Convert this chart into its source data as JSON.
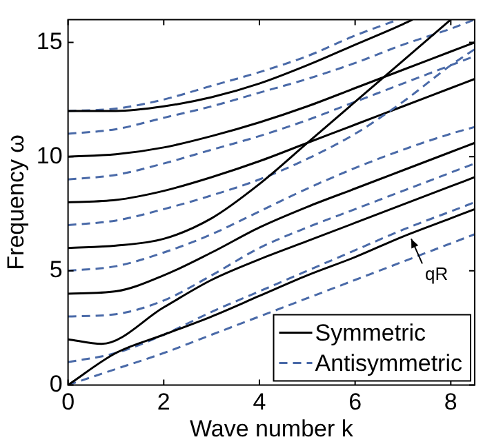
{
  "chart_data": {
    "type": "line",
    "xlabel": "Wave number k",
    "ylabel": "Frequency ω",
    "xlim": [
      0,
      8.5
    ],
    "xticks": [
      0,
      2,
      4,
      6,
      8
    ],
    "ylim": [
      0,
      16
    ],
    "yticks": [
      0,
      5,
      10,
      15
    ],
    "grid": false,
    "legend": "bottom right",
    "marker": "none",
    "annotations": [
      "qR"
    ],
    "series": [
      {
        "name": "Symmetric",
        "color": "#000000",
        "line_style": "solid",
        "x": [
          0,
          1,
          2,
          3,
          4,
          5,
          6,
          7,
          8,
          8.5
        ],
        "values": [
          0,
          1.4,
          2.2,
          3.0,
          3.9,
          4.8,
          5.6,
          6.5,
          7.3,
          7.7
        ]
      },
      {
        "name": "Antisymmetric",
        "color": "#4a6aa8",
        "line_style": "dashed",
        "x": [
          0,
          1,
          2,
          3,
          4,
          5,
          6,
          7,
          8,
          8.5
        ],
        "values": [
          0,
          0.7,
          1.4,
          2.2,
          3.0,
          3.8,
          4.6,
          5.4,
          6.2,
          6.6
        ]
      },
      {
        "color": "#4a6aa8",
        "line_style": "dashed",
        "x": [
          0,
          1,
          2,
          3,
          4,
          5,
          6,
          7,
          8,
          8.5
        ],
        "values": [
          1,
          1.4,
          2.2,
          3.2,
          4.1,
          5.0,
          5.9,
          6.8,
          7.6,
          8.0
        ]
      },
      {
        "color": "#000000",
        "line_style": "solid",
        "x": [
          0,
          0.7,
          2,
          3,
          4,
          5,
          6,
          7,
          8,
          8.5
        ],
        "values": [
          2,
          1.8,
          3.4,
          4.6,
          5.5,
          6.3,
          7.1,
          7.9,
          8.7,
          9.1
        ]
      },
      {
        "color": "#4a6aa8",
        "line_style": "dashed",
        "x": [
          0,
          1,
          2,
          3,
          4,
          5,
          6,
          7,
          8,
          8.5
        ],
        "values": [
          3,
          3.1,
          3.7,
          4.8,
          6.0,
          6.9,
          7.7,
          8.5,
          9.3,
          9.7
        ]
      },
      {
        "color": "#000000",
        "line_style": "solid",
        "x": [
          0,
          1,
          2,
          3,
          4,
          5,
          6,
          7,
          8,
          8.5
        ],
        "values": [
          4,
          4.1,
          4.8,
          5.8,
          6.9,
          7.8,
          8.6,
          9.4,
          10.2,
          10.6
        ]
      },
      {
        "color": "#4a6aa8",
        "line_style": "dashed",
        "x": [
          0,
          1,
          2,
          3,
          4,
          5,
          6,
          7,
          8,
          8.5
        ],
        "values": [
          5,
          5.2,
          5.8,
          6.6,
          7.6,
          8.6,
          9.5,
          10.3,
          11.0,
          11.3
        ]
      },
      {
        "color": "#000000",
        "line_style": "solid",
        "x": [
          0,
          1,
          2,
          3,
          4,
          5,
          6,
          7,
          8
        ],
        "values": [
          6,
          6.1,
          6.4,
          7.3,
          8.8,
          10.6,
          12.4,
          14.2,
          16
        ]
      },
      {
        "color": "#4a6aa8",
        "line_style": "dashed",
        "x": [
          0,
          1,
          2,
          3,
          4,
          5,
          6,
          7,
          8,
          8.5
        ],
        "values": [
          7,
          7.2,
          7.7,
          8.3,
          9.0,
          9.9,
          11.0,
          12.4,
          14.0,
          14.7
        ]
      },
      {
        "color": "#000000",
        "line_style": "solid",
        "x": [
          0,
          1,
          2,
          3,
          4,
          5,
          6,
          7,
          8,
          8.5
        ],
        "values": [
          8,
          8.1,
          8.5,
          9.1,
          9.8,
          10.6,
          11.4,
          12.2,
          13.0,
          13.4
        ]
      },
      {
        "color": "#4a6aa8",
        "line_style": "dashed",
        "x": [
          0,
          1,
          2,
          3,
          4,
          5,
          6,
          7,
          8,
          8.5
        ],
        "values": [
          9,
          9.2,
          9.7,
          10.3,
          10.9,
          11.6,
          12.4,
          13.2,
          14.0,
          14.4
        ]
      },
      {
        "color": "#000000",
        "line_style": "solid",
        "x": [
          0,
          1,
          2,
          3,
          4,
          5,
          6,
          7,
          8,
          8.5
        ],
        "values": [
          10,
          10.1,
          10.4,
          10.9,
          11.5,
          12.2,
          13.0,
          13.8,
          14.6,
          15.0
        ]
      },
      {
        "color": "#4a6aa8",
        "line_style": "dashed",
        "x": [
          0,
          1,
          2,
          3,
          4,
          5,
          6,
          7,
          8,
          8.5
        ],
        "values": [
          11,
          11.2,
          11.7,
          12.2,
          12.8,
          13.4,
          14.1,
          14.9,
          15.6,
          16
        ]
      },
      {
        "color": "#000000",
        "line_style": "solid",
        "x": [
          0,
          1,
          2,
          3,
          4,
          5,
          6,
          7,
          7.2
        ],
        "values": [
          12,
          12.0,
          12.2,
          12.6,
          13.2,
          14.0,
          14.9,
          15.8,
          16
        ]
      },
      {
        "color": "#4a6aa8",
        "line_style": "dashed",
        "x": [
          0,
          1,
          2,
          3,
          4,
          5,
          6,
          6.9
        ],
        "values": [
          12,
          12.1,
          12.5,
          13.1,
          13.7,
          14.4,
          15.3,
          16
        ]
      }
    ]
  }
}
